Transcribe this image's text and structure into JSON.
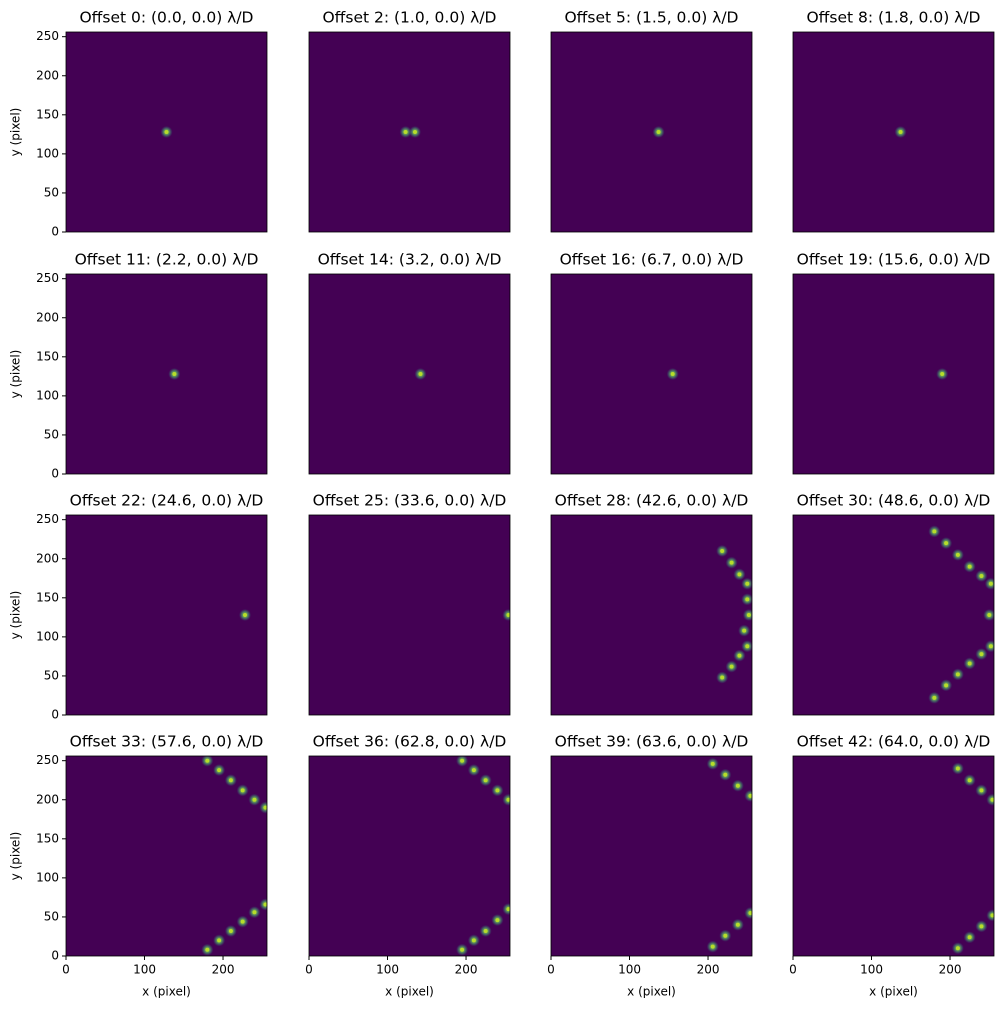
{
  "chart_data": [
    {
      "type": "image",
      "title": "Offset 0: (0.0, 0.0) λ/D",
      "ylabel": "y (pixel)",
      "xlim": [
        0,
        256
      ],
      "ylim": [
        0,
        256
      ],
      "yticks": [
        0,
        50,
        100,
        150,
        200,
        250
      ],
      "x": [
        128
      ],
      "y": [
        128
      ]
    },
    {
      "type": "image",
      "title": "Offset 2: (1.0, 0.0) λ/D",
      "xlim": [
        0,
        256
      ],
      "ylim": [
        0,
        256
      ],
      "x": [
        135,
        123
      ],
      "y": [
        128,
        128
      ]
    },
    {
      "type": "image",
      "title": "Offset 5: (1.5, 0.0) λ/D",
      "xlim": [
        0,
        256
      ],
      "ylim": [
        0,
        256
      ],
      "x": [
        137
      ],
      "y": [
        128
      ]
    },
    {
      "type": "image",
      "title": "Offset 8: (1.8, 0.0) λ/D",
      "xlim": [
        0,
        256
      ],
      "ylim": [
        0,
        256
      ],
      "x": [
        137
      ],
      "y": [
        128
      ]
    },
    {
      "type": "image",
      "title": "Offset 11: (2.2, 0.0) λ/D",
      "ylabel": "y (pixel)",
      "xlim": [
        0,
        256
      ],
      "ylim": [
        0,
        256
      ],
      "yticks": [
        0,
        50,
        100,
        150,
        200,
        250
      ],
      "x": [
        138
      ],
      "y": [
        128
      ]
    },
    {
      "type": "image",
      "title": "Offset 14: (3.2, 0.0) λ/D",
      "xlim": [
        0,
        256
      ],
      "ylim": [
        0,
        256
      ],
      "x": [
        142
      ],
      "y": [
        128
      ]
    },
    {
      "type": "image",
      "title": "Offset 16: (6.7, 0.0) λ/D",
      "xlim": [
        0,
        256
      ],
      "ylim": [
        0,
        256
      ],
      "x": [
        155
      ],
      "y": [
        128
      ]
    },
    {
      "type": "image",
      "title": "Offset 19: (15.6, 0.0) λ/D",
      "xlim": [
        0,
        256
      ],
      "ylim": [
        0,
        256
      ],
      "x": [
        190
      ],
      "y": [
        128
      ]
    },
    {
      "type": "image",
      "title": "Offset 22: (24.6, 0.0) λ/D",
      "ylabel": "y (pixel)",
      "xlim": [
        0,
        256
      ],
      "ylim": [
        0,
        256
      ],
      "yticks": [
        0,
        50,
        100,
        150,
        200,
        250
      ],
      "x": [
        228
      ],
      "y": [
        128
      ]
    },
    {
      "type": "image",
      "title": "Offset 25: (33.6, 0.0) λ/D",
      "xlim": [
        0,
        256
      ],
      "ylim": [
        0,
        256
      ],
      "x": [
        254
      ],
      "y": [
        128
      ]
    },
    {
      "type": "image",
      "title": "Offset 28: (42.6, 0.0) λ/D",
      "xlim": [
        0,
        256
      ],
      "ylim": [
        0,
        256
      ],
      "x": [
        250,
        250,
        252,
        246,
        250,
        240,
        230,
        218,
        240,
        230,
        218
      ],
      "y": [
        168,
        148,
        128,
        108,
        88,
        180,
        195,
        210,
        76,
        62,
        48
      ]
    },
    {
      "type": "image",
      "title": "Offset 30: (48.6, 0.0) λ/D",
      "xlim": [
        0,
        256
      ],
      "ylim": [
        0,
        256
      ],
      "x": [
        252,
        240,
        225,
        210,
        195,
        180,
        252,
        240,
        225,
        210,
        195,
        180,
        250
      ],
      "y": [
        168,
        178,
        190,
        205,
        220,
        235,
        88,
        78,
        66,
        52,
        38,
        22,
        128
      ]
    },
    {
      "type": "image",
      "title": "Offset 33: (57.6, 0.0) λ/D",
      "xlabel": "x (pixel)",
      "ylabel": "y (pixel)",
      "xlim": [
        0,
        256
      ],
      "ylim": [
        0,
        256
      ],
      "xticks": [
        0,
        100,
        200
      ],
      "yticks": [
        0,
        50,
        100,
        150,
        200,
        250
      ],
      "x": [
        254,
        240,
        225,
        210,
        195,
        180,
        254,
        240,
        225,
        210,
        195,
        180
      ],
      "y": [
        190,
        200,
        212,
        225,
        238,
        250,
        66,
        56,
        44,
        32,
        20,
        8
      ]
    },
    {
      "type": "image",
      "title": "Offset 36: (62.8, 0.0) λ/D",
      "xlabel": "x (pixel)",
      "xlim": [
        0,
        256
      ],
      "ylim": [
        0,
        256
      ],
      "xticks": [
        0,
        100,
        200
      ],
      "x": [
        254,
        240,
        225,
        210,
        195,
        254,
        240,
        225,
        210,
        195
      ],
      "y": [
        200,
        212,
        225,
        238,
        250,
        60,
        46,
        32,
        20,
        8
      ]
    },
    {
      "type": "image",
      "title": "Offset 39: (63.6, 0.0) λ/D",
      "xlabel": "x (pixel)",
      "xlim": [
        0,
        256
      ],
      "ylim": [
        0,
        256
      ],
      "xticks": [
        0,
        100,
        200
      ],
      "x": [
        254,
        238,
        222,
        206,
        254,
        238,
        222,
        206
      ],
      "y": [
        205,
        218,
        232,
        246,
        55,
        40,
        26,
        12
      ]
    },
    {
      "type": "image",
      "title": "Offset 42: (64.0, 0.0) λ/D",
      "xlabel": "x (pixel)",
      "xlim": [
        0,
        256
      ],
      "ylim": [
        0,
        256
      ],
      "xticks": [
        0,
        100,
        200
      ],
      "x": [
        254,
        240,
        225,
        210,
        254,
        240,
        225,
        210
      ],
      "y": [
        200,
        212,
        225,
        240,
        52,
        38,
        24,
        10
      ]
    }
  ]
}
